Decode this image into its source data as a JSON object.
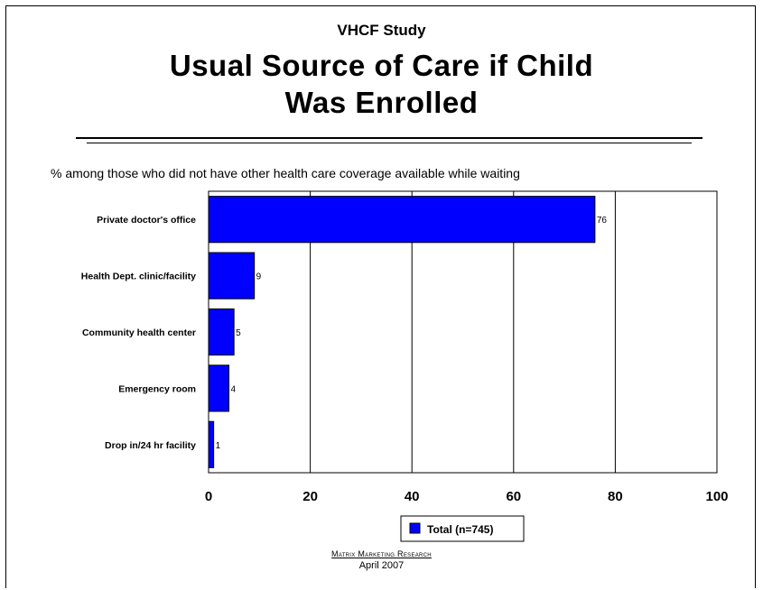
{
  "header": {
    "supertitle": "VHCF Study",
    "title_line1": "Usual Source of Care if Child",
    "title_line2": "Was Enrolled"
  },
  "subtitle": "% among those who did not have other health care coverage available while waiting",
  "footer": {
    "organization": "Matrix Marketing Research",
    "date": "April 2007"
  },
  "colors": {
    "bar_fill": "#0000ff",
    "bar_stroke": "#000000",
    "grid": "#000000"
  },
  "chart_data": {
    "type": "bar",
    "orientation": "horizontal",
    "categories": [
      "Private doctor's office",
      "Health Dept. clinic/facility",
      "Community health center",
      "Emergency room",
      "Drop in/24 hr facility"
    ],
    "series": [
      {
        "name": "Total (n=745)",
        "values": [
          76,
          9,
          5,
          4,
          1
        ]
      }
    ],
    "data_labels": [
      "76",
      "9",
      "5",
      "4",
      "1"
    ],
    "xlim": [
      0,
      100
    ],
    "xticks": [
      "0",
      "20",
      "40",
      "60",
      "80",
      "100"
    ],
    "grid": true,
    "legend_position": "bottom"
  }
}
